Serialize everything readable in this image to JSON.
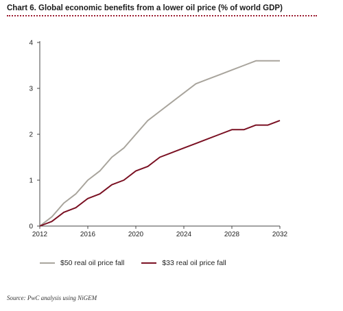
{
  "chart_data": {
    "type": "line",
    "title": "Chart 6. Global economic benefits from a lower oil price (% of world GDP)",
    "xlabel": "",
    "ylabel": "",
    "xlim": [
      2012,
      2032
    ],
    "ylim": [
      0,
      4
    ],
    "x_ticks": [
      2012,
      2016,
      2020,
      2024,
      2028,
      2032
    ],
    "y_ticks": [
      0,
      1,
      2,
      3,
      4
    ],
    "grid": false,
    "legend_position": "bottom",
    "x": [
      2012,
      2013,
      2014,
      2015,
      2016,
      2017,
      2018,
      2019,
      2020,
      2021,
      2022,
      2023,
      2024,
      2025,
      2026,
      2027,
      2028,
      2029,
      2030,
      2031,
      2032
    ],
    "series": [
      {
        "name": "$50 real oil price fall",
        "color": "#a8a49c",
        "values": [
          0,
          0.2,
          0.5,
          0.7,
          1.0,
          1.2,
          1.5,
          1.7,
          2.0,
          2.3,
          2.5,
          2.7,
          2.9,
          3.1,
          3.2,
          3.3,
          3.4,
          3.5,
          3.6,
          3.6,
          3.6
        ]
      },
      {
        "name": "$33 real oil price fall",
        "color": "#7a1022",
        "values": [
          0,
          0.1,
          0.3,
          0.4,
          0.6,
          0.7,
          0.9,
          1.0,
          1.2,
          1.3,
          1.5,
          1.6,
          1.7,
          1.8,
          1.9,
          2.0,
          2.1,
          2.1,
          2.2,
          2.2,
          2.3
        ]
      }
    ]
  },
  "source": "Source: PwC analysis using NiGEM"
}
